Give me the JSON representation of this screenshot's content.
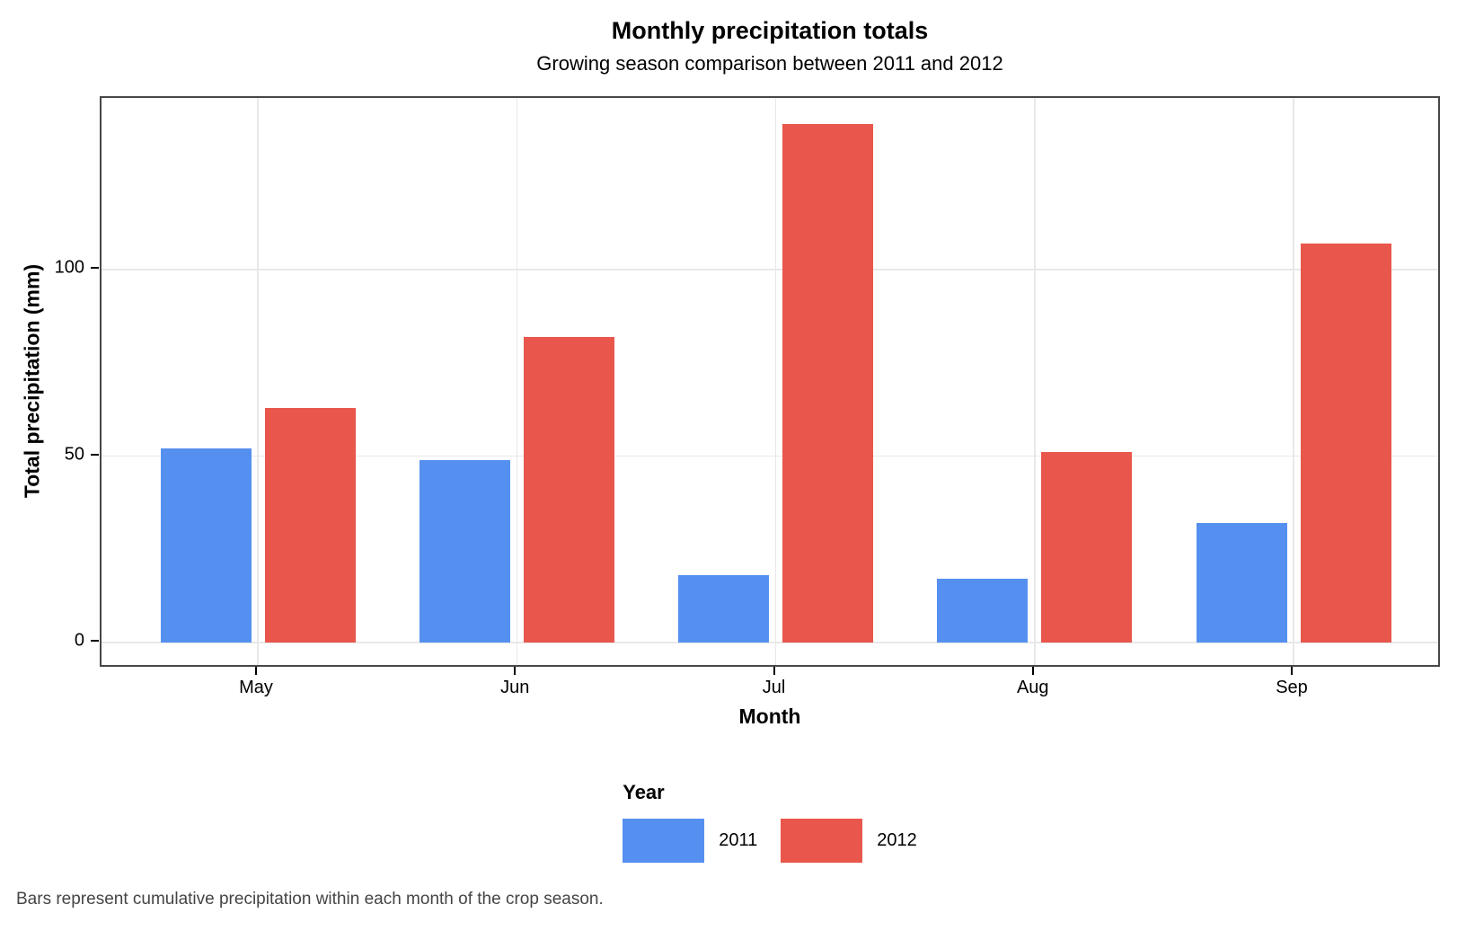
{
  "page": {
    "title": "Monthly precipitation totals",
    "subtitle": "Growing season comparison between 2011 and 2012",
    "caption": "Bars represent cumulative precipitation within each month of the crop season."
  },
  "axes": {
    "x_title": "Month",
    "y_title": "Total precipitation (mm)"
  },
  "legend": {
    "title": "Year",
    "entries": [
      {
        "label": "2011",
        "color": "#5590F0"
      },
      {
        "label": "2012",
        "color": "#E9564B"
      }
    ]
  },
  "chart_data": {
    "type": "bar",
    "categories": [
      "May",
      "Jun",
      "Jul",
      "Aug",
      "Sep"
    ],
    "series": [
      {
        "name": "2011",
        "color": "#5590F0",
        "values": [
          52,
          49,
          18,
          17,
          32
        ]
      },
      {
        "name": "2012",
        "color": "#E9564B",
        "values": [
          63,
          82,
          139,
          51,
          107
        ]
      }
    ],
    "title": "Monthly precipitation totals",
    "subtitle": "Growing season comparison between 2011 and 2012",
    "caption": "Bars represent cumulative precipitation within each month of the crop season.",
    "xlabel": "Month",
    "ylabel": "Total precipitation (mm)",
    "ylim": [
      -7,
      146
    ],
    "y_gridlines": [
      0,
      50,
      100
    ],
    "grid": "major-only",
    "legend_position": "bottom",
    "legend_title": "Year"
  },
  "colors": {
    "bar_2011": "#5590F0",
    "bar_2012": "#E9564B",
    "gridline": "#E8E8E8",
    "panel_border": "#474747",
    "tick": "#000000",
    "caption_text": "#454545",
    "background": "#FFFFFF"
  }
}
